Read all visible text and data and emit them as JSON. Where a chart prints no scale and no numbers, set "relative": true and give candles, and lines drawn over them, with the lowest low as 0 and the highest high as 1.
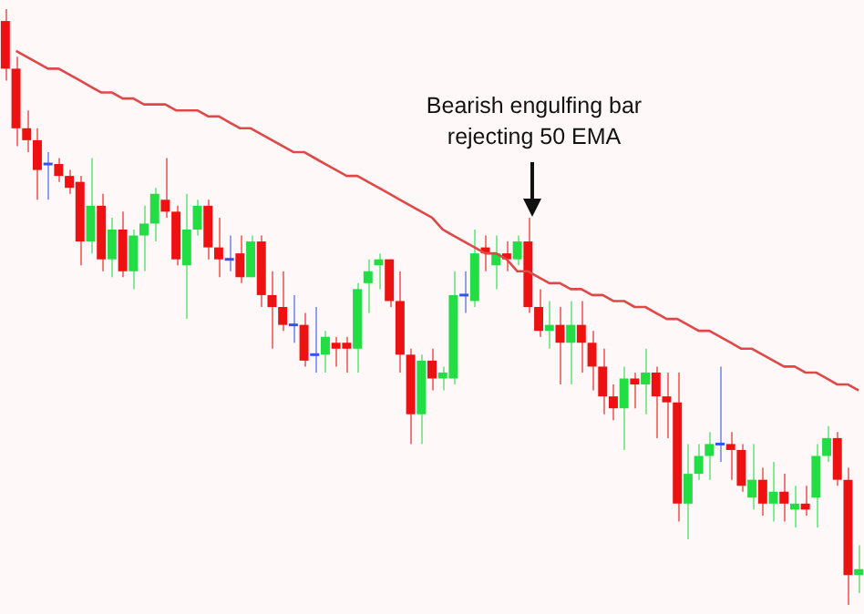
{
  "chart_data": {
    "type": "candlestick",
    "relative": true,
    "annotations": [
      "Bearish engulfing bar\nrejecting 50 EMA"
    ],
    "categories": [
      null,
      null,
      null,
      null,
      null,
      null,
      null,
      null,
      null,
      null,
      null,
      null,
      null,
      null,
      null,
      null,
      null,
      null,
      null,
      null,
      null,
      null,
      null,
      null,
      null,
      null,
      null,
      null,
      null,
      null,
      null,
      null,
      null,
      null,
      null,
      null,
      null,
      null,
      null,
      null,
      null,
      null,
      null,
      null,
      null,
      null,
      null,
      null,
      null,
      null,
      null,
      null,
      null,
      null,
      null,
      null,
      null,
      null,
      null,
      null,
      null,
      null,
      null,
      null,
      null,
      null,
      null,
      null,
      null,
      null,
      null,
      null,
      null,
      null,
      null,
      null,
      null,
      null,
      null,
      null,
      null
    ],
    "ohlc": [
      [
        0.98,
        1,
        0.88,
        0.9
      ],
      [
        0.9,
        0.92,
        0.77,
        0.8
      ],
      [
        0.8,
        0.83,
        0.76,
        0.78
      ],
      [
        0.78,
        0.8,
        0.68,
        0.73
      ],
      [
        0.74,
        0.76,
        0.68,
        0.74
      ],
      [
        0.74,
        0.75,
        0.71,
        0.72
      ],
      [
        0.72,
        0.73,
        0.69,
        0.7
      ],
      [
        0.71,
        0.72,
        0.57,
        0.61
      ],
      [
        0.61,
        0.75,
        0.59,
        0.67
      ],
      [
        0.67,
        0.69,
        0.56,
        0.58
      ],
      [
        0.58,
        0.65,
        0.55,
        0.63
      ],
      [
        0.63,
        0.66,
        0.55,
        0.56
      ],
      [
        0.56,
        0.63,
        0.53,
        0.62
      ],
      [
        0.62,
        0.67,
        0.56,
        0.64
      ],
      [
        0.64,
        0.7,
        0.61,
        0.69
      ],
      [
        0.68,
        0.75,
        0.65,
        0.66
      ],
      [
        0.66,
        0.67,
        0.57,
        0.58
      ],
      [
        0.57,
        0.69,
        0.48,
        0.63
      ],
      [
        0.63,
        0.68,
        0.62,
        0.67
      ],
      [
        0.67,
        0.68,
        0.58,
        0.6
      ],
      [
        0.6,
        0.65,
        0.55,
        0.58
      ],
      [
        0.58,
        0.62,
        0.56,
        0.58
      ],
      [
        0.59,
        0.62,
        0.54,
        0.55
      ],
      [
        0.55,
        0.62,
        0.55,
        0.61
      ],
      [
        0.61,
        0.62,
        0.5,
        0.52
      ],
      [
        0.52,
        0.56,
        0.43,
        0.5
      ],
      [
        0.5,
        0.56,
        0.46,
        0.47
      ],
      [
        0.47,
        0.52,
        0.44,
        0.47
      ],
      [
        0.47,
        0.49,
        0.4,
        0.41
      ],
      [
        0.42,
        0.5,
        0.39,
        0.42
      ],
      [
        0.42,
        0.46,
        0.39,
        0.45
      ],
      [
        0.44,
        0.45,
        0.4,
        0.43
      ],
      [
        0.44,
        0.45,
        0.39,
        0.43
      ],
      [
        0.43,
        0.54,
        0.39,
        0.53
      ],
      [
        0.54,
        0.58,
        0.49,
        0.56
      ],
      [
        0.57,
        0.59,
        0.53,
        0.58
      ],
      [
        0.58,
        0.58,
        0.5,
        0.51
      ],
      [
        0.51,
        0.56,
        0.39,
        0.42
      ],
      [
        0.42,
        0.43,
        0.27,
        0.32
      ],
      [
        0.32,
        0.42,
        0.27,
        0.41
      ],
      [
        0.41,
        0.43,
        0.36,
        0.38
      ],
      [
        0.38,
        0.4,
        0.36,
        0.39
      ],
      [
        0.38,
        0.56,
        0.37,
        0.52
      ],
      [
        0.52,
        0.56,
        0.49,
        0.52
      ],
      [
        0.51,
        0.63,
        0.5,
        0.59
      ],
      [
        0.6,
        0.62,
        0.56,
        0.59
      ],
      [
        0.57,
        0.62,
        0.53,
        0.59
      ],
      [
        0.59,
        0.61,
        0.56,
        0.58
      ],
      [
        0.58,
        0.62,
        0.57,
        0.61
      ],
      [
        0.61,
        0.65,
        0.49,
        0.5
      ],
      [
        0.5,
        0.53,
        0.45,
        0.46
      ],
      [
        0.46,
        0.51,
        0.43,
        0.47
      ],
      [
        0.47,
        0.5,
        0.37,
        0.44
      ],
      [
        0.44,
        0.51,
        0.37,
        0.47
      ],
      [
        0.47,
        0.51,
        0.39,
        0.44
      ],
      [
        0.44,
        0.46,
        0.36,
        0.4
      ],
      [
        0.4,
        0.43,
        0.32,
        0.35
      ],
      [
        0.35,
        0.37,
        0.31,
        0.33
      ],
      [
        0.33,
        0.4,
        0.26,
        0.38
      ],
      [
        0.38,
        0.39,
        0.33,
        0.37
      ],
      [
        0.37,
        0.43,
        0.32,
        0.39
      ],
      [
        0.39,
        0.4,
        0.28,
        0.35
      ],
      [
        0.35,
        0.39,
        0.28,
        0.34
      ],
      [
        0.34,
        0.39,
        0.14,
        0.17
      ],
      [
        0.17,
        0.27,
        0.11,
        0.22
      ],
      [
        0.22,
        0.27,
        0.21,
        0.25
      ],
      [
        0.25,
        0.29,
        0.21,
        0.27
      ],
      [
        0.27,
        0.4,
        0.24,
        0.27
      ],
      [
        0.27,
        0.29,
        0.21,
        0.26
      ],
      [
        0.26,
        0.27,
        0.19,
        0.2
      ],
      [
        0.18,
        0.27,
        0.16,
        0.21
      ],
      [
        0.21,
        0.23,
        0.15,
        0.17
      ],
      [
        0.17,
        0.24,
        0.14,
        0.19
      ],
      [
        0.19,
        0.22,
        0.14,
        0.17
      ],
      [
        0.16,
        0.2,
        0.13,
        0.17
      ],
      [
        0.17,
        0.2,
        0.15,
        0.16
      ],
      [
        0.18,
        0.27,
        0.13,
        0.25
      ],
      [
        0.25,
        0.3,
        0.24,
        0.28
      ],
      [
        0.28,
        0.29,
        0.2,
        0.21
      ],
      [
        0.21,
        0.23,
        0,
        0.05
      ],
      [
        0.05,
        0.1,
        0.02,
        0.06
      ]
    ],
    "colors": [
      "#ee1111",
      "#ee1111",
      "#ee1111",
      "#ee1111",
      "#3355ee",
      "#ee1111",
      "#ee1111",
      "#ee1111",
      "#22dd44",
      "#ee1111",
      "#22dd44",
      "#ee1111",
      "#22dd44",
      "#22dd44",
      "#22dd44",
      "#ee1111",
      "#ee1111",
      "#22dd44",
      "#22dd44",
      "#ee1111",
      "#ee1111",
      "#3355ee",
      "#ee1111",
      "#22dd44",
      "#ee1111",
      "#ee1111",
      "#ee1111",
      "#3355ee",
      "#ee1111",
      "#3355ee",
      "#22dd44",
      "#ee1111",
      "#ee1111",
      "#22dd44",
      "#22dd44",
      "#22dd44",
      "#ee1111",
      "#ee1111",
      "#ee1111",
      "#22dd44",
      "#ee1111",
      "#22dd44",
      "#22dd44",
      "#3355ee",
      "#22dd44",
      "#ee1111",
      "#22dd44",
      "#ee1111",
      "#22dd44",
      "#ee1111",
      "#ee1111",
      "#22dd44",
      "#ee1111",
      "#22dd44",
      "#ee1111",
      "#ee1111",
      "#ee1111",
      "#ee1111",
      "#22dd44",
      "#ee1111",
      "#22dd44",
      "#ee1111",
      "#ee1111",
      "#ee1111",
      "#22dd44",
      "#22dd44",
      "#22dd44",
      "#3355ee",
      "#ee1111",
      "#ee1111",
      "#22dd44",
      "#ee1111",
      "#22dd44",
      "#ee1111",
      "#22dd44",
      "#ee1111",
      "#22dd44",
      "#22dd44",
      "#ee1111",
      "#ee1111",
      "#22dd44"
    ],
    "series": [
      {
        "type": "line",
        "color": "#e04848",
        "values": [
          null,
          0.93,
          0.92,
          0.91,
          0.9,
          0.9,
          0.89,
          0.88,
          0.87,
          0.86,
          0.86,
          0.85,
          0.85,
          0.84,
          0.84,
          0.84,
          0.83,
          0.83,
          0.83,
          0.82,
          0.82,
          0.81,
          0.8,
          0.8,
          0.79,
          0.78,
          0.77,
          0.76,
          0.76,
          0.75,
          0.74,
          0.73,
          0.72,
          0.72,
          0.71,
          0.7,
          0.69,
          0.68,
          0.67,
          0.66,
          0.65,
          0.63,
          0.62,
          0.61,
          0.6,
          0.59,
          0.59,
          0.58,
          0.56,
          0.56,
          0.55,
          0.54,
          0.54,
          0.53,
          0.53,
          0.52,
          0.52,
          0.51,
          0.51,
          0.5,
          0.5,
          0.49,
          0.48,
          0.48,
          0.47,
          0.46,
          0.46,
          0.45,
          0.44,
          0.43,
          0.43,
          0.42,
          0.41,
          0.4,
          0.4,
          0.39,
          0.39,
          0.38,
          0.37,
          0.37,
          0.36
        ]
      }
    ]
  }
}
